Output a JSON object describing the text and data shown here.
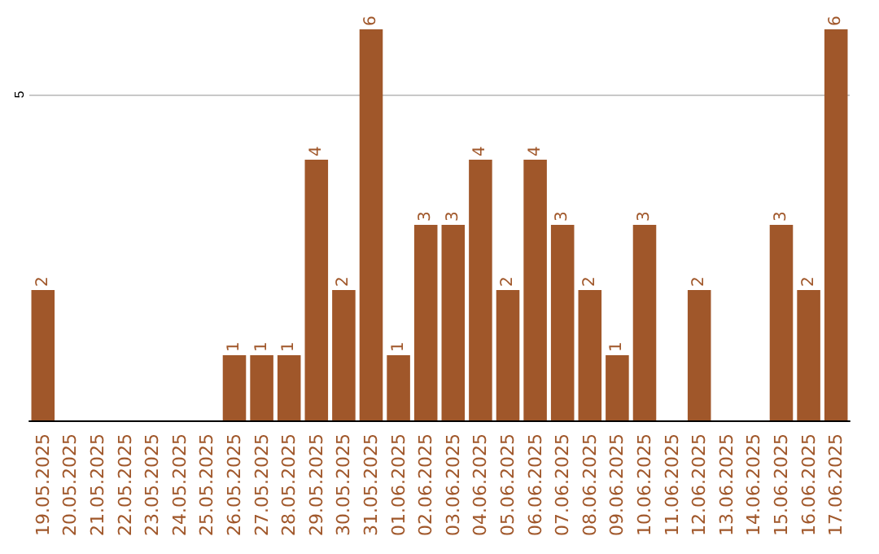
{
  "chart_data": {
    "type": "bar",
    "categories": [
      "19.05.2025",
      "20.05.2025",
      "21.05.2025",
      "22.05.2025",
      "23.05.2025",
      "24.05.2025",
      "25.05.2025",
      "26.05.2025",
      "27.05.2025",
      "28.05.2025",
      "29.05.2025",
      "30.05.2025",
      "31.05.2025",
      "01.06.2025",
      "02.06.2025",
      "03.06.2025",
      "04.06.2025",
      "05.06.2025",
      "06.06.2025",
      "07.06.2025",
      "08.06.2025",
      "09.06.2025",
      "10.06.2025",
      "11.06.2025",
      "12.06.2025",
      "13.06.2025",
      "14.06.2025",
      "15.06.2025",
      "16.06.2025",
      "17.06.2025"
    ],
    "values": [
      2,
      0,
      0,
      0,
      0,
      0,
      0,
      1,
      1,
      1,
      4,
      2,
      6,
      1,
      3,
      3,
      4,
      2,
      4,
      3,
      2,
      1,
      3,
      0,
      2,
      0,
      0,
      3,
      2,
      6
    ],
    "value_labels": [
      "2",
      null,
      null,
      null,
      null,
      null,
      null,
      "1",
      "1",
      "1",
      "4",
      "2",
      "6",
      "1",
      "3",
      "3",
      "4",
      "2",
      "4",
      "3",
      "2",
      "1",
      "3",
      null,
      "2",
      null,
      null,
      "3",
      "2",
      "6"
    ],
    "color": "#a0572a",
    "ylim": [
      0,
      6
    ],
    "yticks": [
      5
    ],
    "grid": "y"
  }
}
